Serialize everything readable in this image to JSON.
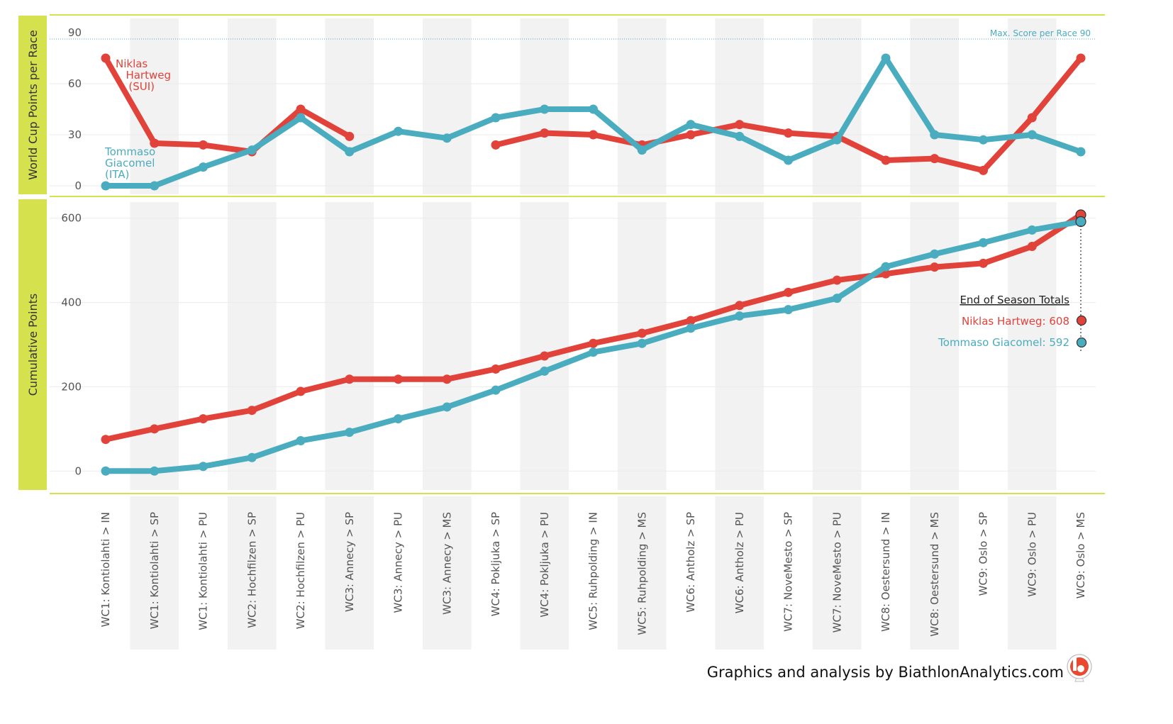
{
  "chart_data": {
    "type": "line",
    "categories": [
      "WC1: Kontiolahti > IN",
      "WC1: Kontiolahti > SP",
      "WC1: Kontiolahti > PU",
      "WC2: Hochfilzen > SP",
      "WC2: Hochfilzen > PU",
      "WC3: Annecy > SP",
      "WC3: Annecy > PU",
      "WC3: Annecy > MS",
      "WC4: Pokljuka > SP",
      "WC4: Pokljuka > PU",
      "WC5: Ruhpolding > IN",
      "WC5: Ruhpolding > MS",
      "WC6: Antholz > SP",
      "WC6: Antholz > PU",
      "WC7: NoveMesto > SP",
      "WC7: NoveMesto > PU",
      "WC8: Oestersund > IN",
      "WC8: Oestersund > MS",
      "WC9: Oslo > SP",
      "WC9: Oslo > PU",
      "WC9: Oslo > MS"
    ],
    "panels": [
      {
        "ylabel": "World Cup Points per Race",
        "ylim": [
          -5,
          100
        ],
        "yticks": [
          0,
          30,
          60,
          90
        ],
        "reference_line": {
          "value": 90,
          "label": "Max. Score per Race  90"
        },
        "series": [
          {
            "name": "Niklas Hartweg",
            "color": "#e1433a",
            "values": [
              75,
              25,
              24,
              20,
              45,
              29,
              null,
              null,
              24,
              31,
              30,
              24,
              30,
              36,
              31,
              29,
              15,
              16,
              9,
              40,
              75
            ]
          },
          {
            "name": "Tommaso Giacomel",
            "color": "#4aacbf",
            "values": [
              0,
              0,
              11,
              21,
              40,
              20,
              32,
              28,
              40,
              45,
              45,
              21,
              36,
              29,
              15,
              27,
              75,
              30,
              27,
              30,
              20
            ]
          }
        ]
      },
      {
        "ylabel": "Cumulative Points",
        "ylim": [
          -45,
          645
        ],
        "yticks": [
          0,
          200,
          400,
          600
        ],
        "series": [
          {
            "name": "Niklas Hartweg",
            "color": "#e1433a",
            "values": [
              75,
              100,
              124,
              144,
              189,
              218,
              218,
              218,
              242,
              273,
              303,
              327,
              357,
              393,
              424,
              453,
              468,
              484,
              493,
              533,
              608
            ]
          },
          {
            "name": "Tommaso Giacomel",
            "color": "#4aacbf",
            "values": [
              0,
              0,
              11,
              32,
              72,
              92,
              124,
              152,
              192,
              237,
              282,
              303,
              339,
              368,
              383,
              410,
              485,
              515,
              542,
              572,
              592
            ]
          }
        ]
      }
    ],
    "grid": true,
    "legend": "none"
  },
  "labels": {
    "hartweg_line1": "Niklas",
    "hartweg_line2": "Hartweg",
    "hartweg_line3": "(SUI)",
    "giacomel_line1": "Tommaso",
    "giacomel_line2": "Giacomel",
    "giacomel_line3": "(ITA)"
  },
  "totals": {
    "title": "End of Season Totals",
    "hartweg": "Niklas Hartweg: 608",
    "giacomel": "Tommaso Giacomel: 592"
  },
  "credit": "Graphics and analysis by BiathlonAnalytics.com",
  "colors": {
    "hartweg": "#e1433a",
    "giacomel": "#4aacbf",
    "panel_strip": "#d5e14d",
    "band": "#f2f2f2"
  }
}
